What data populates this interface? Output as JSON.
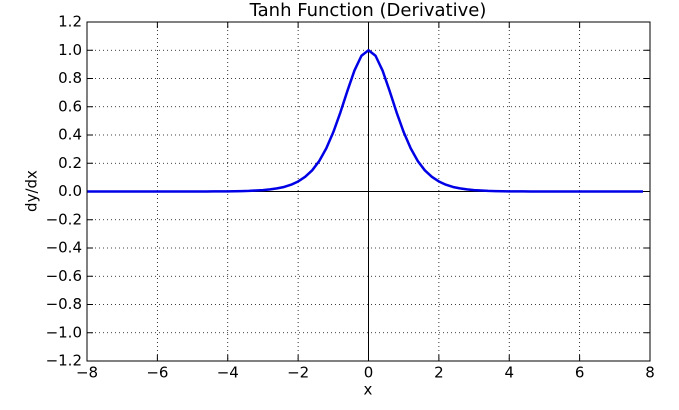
{
  "chart_data": {
    "type": "line",
    "title": "Tanh Function (Derivative)",
    "xlabel": "x",
    "ylabel": "dy/dx",
    "x": [
      -8,
      -7.8,
      -7.6,
      -7.4,
      -7.2,
      -7,
      -6.8,
      -6.6,
      -6.4,
      -6.2,
      -6,
      -5.8,
      -5.6,
      -5.4,
      -5.2,
      -5,
      -4.8,
      -4.6,
      -4.4,
      -4.2,
      -4,
      -3.8,
      -3.6,
      -3.4,
      -3.2,
      -3,
      -2.8,
      -2.6,
      -2.4,
      -2.2,
      -2,
      -1.8,
      -1.6,
      -1.4,
      -1.2,
      -1,
      -0.8,
      -0.6,
      -0.4,
      -0.2,
      0,
      0.2,
      0.4,
      0.6,
      0.8,
      1,
      1.2,
      1.4,
      1.6,
      1.8,
      2,
      2.2,
      2.4,
      2.6,
      2.8,
      3,
      3.2,
      3.4,
      3.6,
      3.8,
      4,
      4.2,
      4.4,
      4.6,
      4.8,
      5,
      5.2,
      5.4,
      5.6,
      5.8,
      6,
      6.2,
      6.4,
      6.6,
      6.8,
      7,
      7.2,
      7.4,
      7.6,
      7.8
    ],
    "values": [
      0,
      0,
      0,
      0,
      0,
      0,
      0,
      0,
      0,
      0,
      0,
      0,
      0,
      0,
      0,
      0,
      0,
      0,
      0.001,
      0.001,
      0.001,
      0.002,
      0.003,
      0.004,
      0.007,
      0.01,
      0.015,
      0.022,
      0.032,
      0.048,
      0.071,
      0.104,
      0.15,
      0.216,
      0.305,
      0.42,
      0.559,
      0.712,
      0.856,
      0.961,
      1,
      0.961,
      0.856,
      0.712,
      0.559,
      0.42,
      0.305,
      0.216,
      0.15,
      0.104,
      0.071,
      0.048,
      0.032,
      0.022,
      0.015,
      0.01,
      0.007,
      0.004,
      0.003,
      0.002,
      0.001,
      0.001,
      0.001,
      0,
      0,
      0,
      0,
      0,
      0,
      0,
      0,
      0,
      0,
      0,
      0,
      0,
      0,
      0,
      0,
      0
    ],
    "color": "#0000e6",
    "xlim": [
      -8,
      8
    ],
    "xticks": [
      {
        "value": -8,
        "label": "−8"
      },
      {
        "value": -6,
        "label": "−6"
      },
      {
        "value": -4,
        "label": "−4"
      },
      {
        "value": -2,
        "label": "−2"
      },
      0,
      2,
      4,
      6,
      8
    ],
    "ylim": [
      -1.2,
      1.2
    ],
    "yticks": [
      {
        "value": -1.2,
        "label": "−1.2"
      },
      {
        "value": -1.0,
        "label": "−1.0"
      },
      {
        "value": -0.8,
        "label": "−0.8"
      },
      {
        "value": -0.6,
        "label": "−0.6"
      },
      {
        "value": -0.4,
        "label": "−0.4"
      },
      {
        "value": -0.2,
        "label": "−0.2"
      },
      {
        "value": 0,
        "label": "0.0"
      },
      0.2,
      0.4,
      0.6,
      0.8,
      {
        "value": 1.0,
        "label": "1.0"
      },
      1.2
    ],
    "grid": true
  }
}
